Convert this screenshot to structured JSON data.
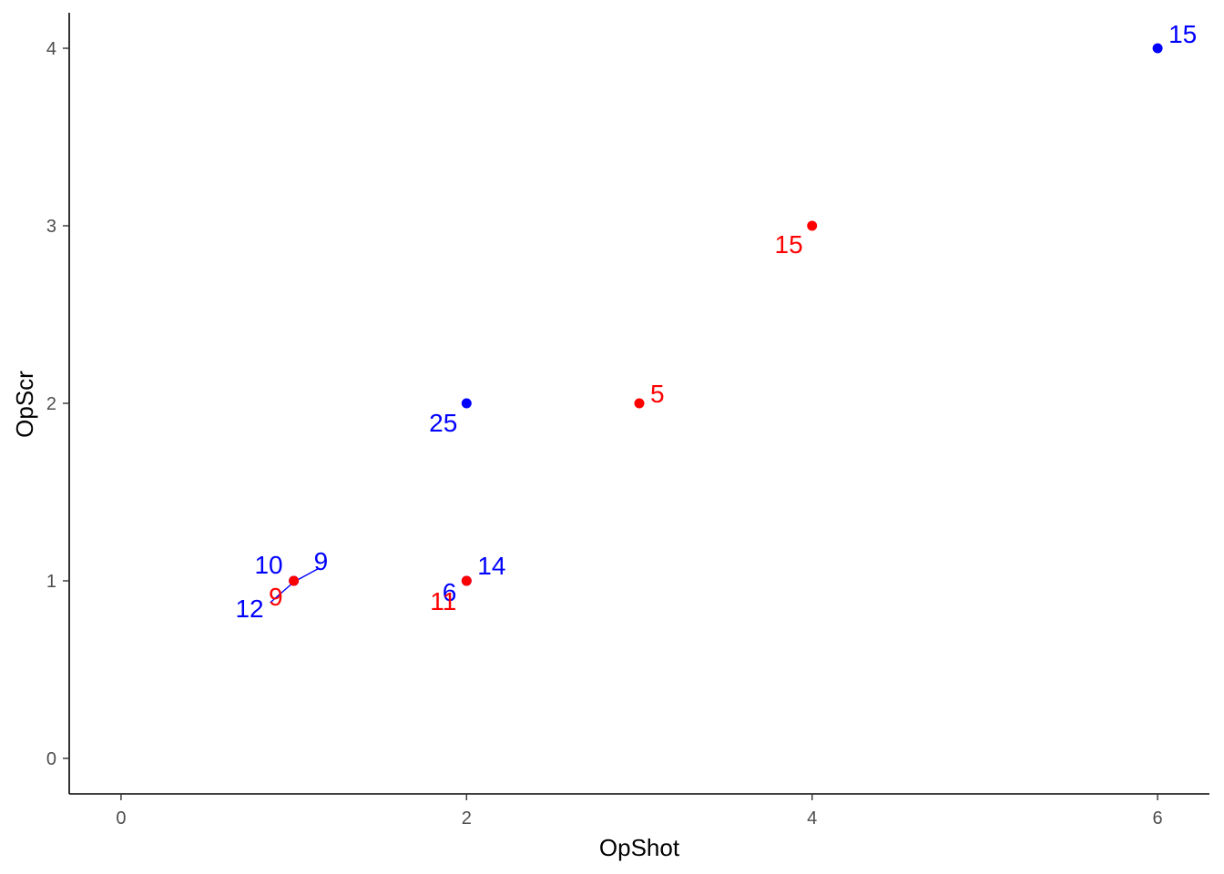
{
  "chart_data": {
    "type": "scatter",
    "title": "",
    "xlabel": "OpShot",
    "ylabel": "OpScr",
    "xlim": [
      -0.3,
      6.3
    ],
    "ylim": [
      -0.2,
      4.2
    ],
    "x_ticks": [
      0,
      2,
      4,
      6
    ],
    "y_ticks": [
      0,
      1,
      2,
      3,
      4
    ],
    "grid": false,
    "legend": "none",
    "colors": {
      "blue": "#0000ff",
      "red": "#ff0000"
    },
    "points": [
      {
        "x": 6,
        "y": 4,
        "color": "#0000ff"
      },
      {
        "x": 4,
        "y": 3,
        "color": "#ff0000"
      },
      {
        "x": 2,
        "y": 2,
        "color": "#0000ff"
      },
      {
        "x": 3,
        "y": 2,
        "color": "#ff0000"
      },
      {
        "x": 1,
        "y": 1,
        "color": "#0000ff"
      },
      {
        "x": 1,
        "y": 1,
        "color": "#ff0000"
      },
      {
        "x": 2,
        "y": 1,
        "color": "#0000ff"
      },
      {
        "x": 2,
        "y": 1,
        "color": "#ff0000"
      }
    ],
    "labels": [
      {
        "text": "15",
        "x": 6,
        "y": 4,
        "color": "#0000ff"
      },
      {
        "text": "15",
        "x": 4,
        "y": 3,
        "color": "#ff0000"
      },
      {
        "text": "25",
        "x": 2,
        "y": 2,
        "color": "#0000ff"
      },
      {
        "text": "5",
        "x": 3,
        "y": 2,
        "color": "#ff0000"
      },
      {
        "text": "10",
        "x": 1,
        "y": 1,
        "color": "#0000ff"
      },
      {
        "text": "9",
        "x": 1,
        "y": 1,
        "color": "#0000ff"
      },
      {
        "text": "12",
        "x": 1,
        "y": 1,
        "color": "#0000ff"
      },
      {
        "text": "9",
        "x": 1,
        "y": 1,
        "color": "#ff0000"
      },
      {
        "text": "14",
        "x": 2,
        "y": 1,
        "color": "#0000ff"
      },
      {
        "text": "6",
        "x": 2,
        "y": 1,
        "color": "#0000ff"
      },
      {
        "text": "11",
        "x": 2,
        "y": 1,
        "color": "#ff0000"
      }
    ]
  }
}
